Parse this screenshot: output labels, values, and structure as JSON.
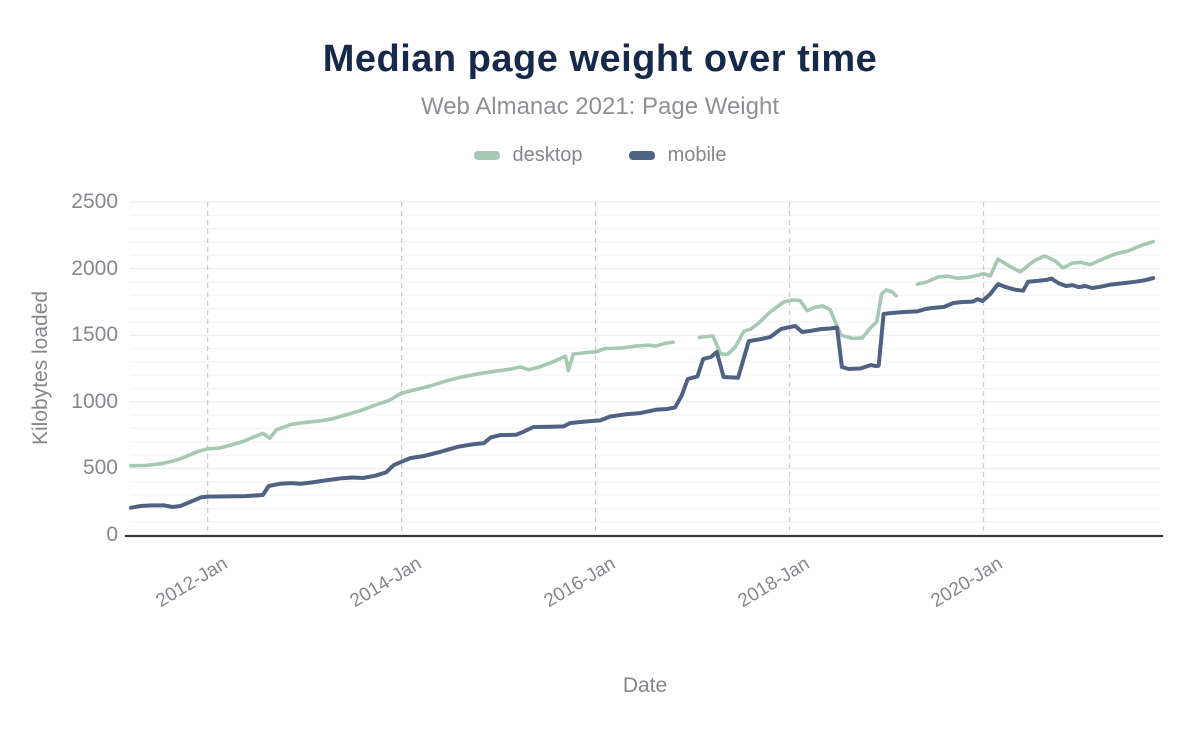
{
  "header": {
    "title": "Median page weight over time",
    "subtitle": "Web Almanac 2021: Page Weight"
  },
  "legend": [
    {
      "label": "desktop",
      "color": "#a6c9b3"
    },
    {
      "label": "mobile",
      "color": "#4f6282"
    }
  ],
  "colors": {
    "title": "#16294a",
    "axis_text": "#85888c",
    "axis_line": "#37393c",
    "grid_minor": "#f2f3f4",
    "grid_major": "#e8e9eb",
    "grid_vertical_dashed": "#cbcccd"
  },
  "chart_data": {
    "type": "line",
    "title": "Median page weight over time",
    "subtitle": "Web Almanac 2021: Page Weight",
    "xlabel": "Date",
    "ylabel": "Kilobytes loaded",
    "x_unit": "decimal_year",
    "xlim": [
      2011.2,
      2021.82
    ],
    "ylim": [
      0,
      2500
    ],
    "y_ticks": [
      0,
      500,
      1000,
      1500,
      2000,
      2500
    ],
    "x_ticks": [
      {
        "t": 2012,
        "label": "2012-Jan"
      },
      {
        "t": 2014,
        "label": "2014-Jan"
      },
      {
        "t": 2016,
        "label": "2016-Jan"
      },
      {
        "t": 2018,
        "label": "2018-Jan"
      },
      {
        "t": 2020,
        "label": "2020-Jan"
      }
    ],
    "grid": {
      "minor_step": 100,
      "major_step": 500,
      "vertical": "dashed"
    },
    "legend_position": "top",
    "series": [
      {
        "name": "desktop",
        "color": "#a6c9b3",
        "width": 3.6,
        "points": [
          [
            2011.21,
            520
          ],
          [
            2011.36,
            522
          ],
          [
            2011.52,
            535
          ],
          [
            2011.64,
            555
          ],
          [
            2011.75,
            580
          ],
          [
            2011.89,
            625
          ],
          [
            2012.0,
            647
          ],
          [
            2012.11,
            652
          ],
          [
            2012.24,
            675
          ],
          [
            2012.37,
            703
          ],
          [
            2012.49,
            740
          ],
          [
            2012.57,
            763
          ],
          [
            2012.64,
            727
          ],
          [
            2012.71,
            790
          ],
          [
            2012.86,
            830
          ],
          [
            2013.01,
            845
          ],
          [
            2013.14,
            855
          ],
          [
            2013.27,
            870
          ],
          [
            2013.42,
            900
          ],
          [
            2013.58,
            935
          ],
          [
            2013.73,
            975
          ],
          [
            2013.87,
            1010
          ],
          [
            2014.0,
            1065
          ],
          [
            2014.14,
            1090
          ],
          [
            2014.3,
            1120
          ],
          [
            2014.45,
            1155
          ],
          [
            2014.61,
            1185
          ],
          [
            2014.79,
            1210
          ],
          [
            2014.97,
            1230
          ],
          [
            2015.12,
            1245
          ],
          [
            2015.23,
            1262
          ],
          [
            2015.31,
            1240
          ],
          [
            2015.41,
            1258
          ],
          [
            2015.56,
            1300
          ],
          [
            2015.69,
            1343
          ],
          [
            2015.72,
            1234
          ],
          [
            2015.77,
            1358
          ],
          [
            2015.9,
            1370
          ],
          [
            2016.0,
            1375
          ],
          [
            2016.1,
            1400
          ],
          [
            2016.26,
            1403
          ],
          [
            2016.41,
            1418
          ],
          [
            2016.55,
            1425
          ],
          [
            2016.62,
            1418
          ],
          [
            2016.72,
            1440
          ],
          [
            2016.8,
            1448
          ],
          null,
          [
            2017.07,
            1483
          ],
          [
            2017.14,
            1490
          ],
          [
            2017.21,
            1494
          ],
          [
            2017.29,
            1360
          ],
          [
            2017.36,
            1355
          ],
          [
            2017.44,
            1410
          ],
          [
            2017.53,
            1530
          ],
          [
            2017.6,
            1545
          ],
          [
            2017.68,
            1590
          ],
          [
            2017.8,
            1674
          ],
          [
            2017.94,
            1749
          ],
          [
            2018.03,
            1764
          ],
          [
            2018.11,
            1760
          ],
          [
            2018.18,
            1685
          ],
          [
            2018.27,
            1710
          ],
          [
            2018.34,
            1720
          ],
          [
            2018.42,
            1690
          ],
          [
            2018.53,
            1500
          ],
          [
            2018.65,
            1475
          ],
          [
            2018.75,
            1480
          ],
          [
            2018.84,
            1560
          ],
          [
            2018.9,
            1600
          ],
          [
            2018.95,
            1810
          ],
          [
            2019.0,
            1840
          ],
          [
            2019.06,
            1824
          ],
          [
            2019.1,
            1795
          ],
          null,
          [
            2019.32,
            1884
          ],
          [
            2019.42,
            1900
          ],
          [
            2019.53,
            1937
          ],
          [
            2019.63,
            1944
          ],
          [
            2019.73,
            1928
          ],
          [
            2019.84,
            1934
          ],
          [
            2019.94,
            1950
          ],
          [
            2020.0,
            1962
          ],
          [
            2020.07,
            1945
          ],
          [
            2020.15,
            2072
          ],
          [
            2020.23,
            2035
          ],
          [
            2020.3,
            2005
          ],
          [
            2020.38,
            1975
          ],
          [
            2020.52,
            2057
          ],
          [
            2020.63,
            2095
          ],
          [
            2020.74,
            2057
          ],
          [
            2020.82,
            2005
          ],
          [
            2020.92,
            2042
          ],
          [
            2021.0,
            2047
          ],
          [
            2021.1,
            2030
          ],
          [
            2021.23,
            2072
          ],
          [
            2021.36,
            2110
          ],
          [
            2021.49,
            2132
          ],
          [
            2021.62,
            2172
          ],
          [
            2021.75,
            2203
          ]
        ]
      },
      {
        "name": "mobile",
        "color": "#4f6282",
        "width": 4,
        "points": [
          [
            2011.21,
            205
          ],
          [
            2011.31,
            218
          ],
          [
            2011.43,
            222
          ],
          [
            2011.55,
            222
          ],
          [
            2011.64,
            210
          ],
          [
            2011.72,
            218
          ],
          [
            2011.82,
            248
          ],
          [
            2011.93,
            282
          ],
          [
            2012.0,
            288
          ],
          [
            2012.19,
            290
          ],
          [
            2012.39,
            292
          ],
          [
            2012.57,
            300
          ],
          [
            2012.63,
            368
          ],
          [
            2012.75,
            385
          ],
          [
            2012.86,
            390
          ],
          [
            2012.96,
            385
          ],
          [
            2013.08,
            395
          ],
          [
            2013.22,
            410
          ],
          [
            2013.37,
            425
          ],
          [
            2013.49,
            432
          ],
          [
            2013.6,
            428
          ],
          [
            2013.73,
            445
          ],
          [
            2013.84,
            470
          ],
          [
            2013.92,
            525
          ],
          [
            2014.0,
            550
          ],
          [
            2014.09,
            577
          ],
          [
            2014.23,
            593
          ],
          [
            2014.4,
            625
          ],
          [
            2014.58,
            662
          ],
          [
            2014.73,
            680
          ],
          [
            2014.85,
            690
          ],
          [
            2014.92,
            733
          ],
          [
            2015.02,
            750
          ],
          [
            2015.18,
            752
          ],
          [
            2015.26,
            776
          ],
          [
            2015.36,
            811
          ],
          [
            2015.54,
            812
          ],
          [
            2015.67,
            815
          ],
          [
            2015.74,
            841
          ],
          [
            2015.9,
            852
          ],
          [
            2016.05,
            860
          ],
          [
            2016.15,
            890
          ],
          [
            2016.31,
            906
          ],
          [
            2016.46,
            915
          ],
          [
            2016.62,
            940
          ],
          [
            2016.74,
            946
          ],
          [
            2016.82,
            958
          ],
          [
            2016.89,
            1050
          ],
          [
            2016.95,
            1171
          ],
          [
            2017.05,
            1190
          ],
          [
            2017.11,
            1321
          ],
          [
            2017.19,
            1336
          ],
          [
            2017.25,
            1374
          ],
          [
            2017.32,
            1186
          ],
          [
            2017.47,
            1180
          ],
          [
            2017.58,
            1456
          ],
          [
            2017.7,
            1470
          ],
          [
            2017.8,
            1486
          ],
          [
            2017.91,
            1546
          ],
          [
            2018.0,
            1561
          ],
          [
            2018.06,
            1569
          ],
          [
            2018.13,
            1524
          ],
          [
            2018.22,
            1532
          ],
          [
            2018.32,
            1546
          ],
          [
            2018.42,
            1550
          ],
          [
            2018.49,
            1557
          ],
          [
            2018.54,
            1261
          ],
          [
            2018.61,
            1246
          ],
          [
            2018.73,
            1250
          ],
          [
            2018.84,
            1276
          ],
          [
            2018.89,
            1268
          ],
          [
            2018.92,
            1272
          ],
          [
            2018.97,
            1659
          ],
          [
            2019.04,
            1666
          ],
          [
            2019.18,
            1674
          ],
          [
            2019.32,
            1679
          ],
          [
            2019.4,
            1697
          ],
          [
            2019.47,
            1704
          ],
          [
            2019.59,
            1712
          ],
          [
            2019.69,
            1742
          ],
          [
            2019.78,
            1749
          ],
          [
            2019.89,
            1752
          ],
          [
            2019.94,
            1770
          ],
          [
            2019.99,
            1757
          ],
          [
            2020.07,
            1809
          ],
          [
            2020.15,
            1884
          ],
          [
            2020.23,
            1861
          ],
          [
            2020.33,
            1841
          ],
          [
            2020.41,
            1834
          ],
          [
            2020.46,
            1902
          ],
          [
            2020.56,
            1908
          ],
          [
            2020.65,
            1915
          ],
          [
            2020.7,
            1926
          ],
          [
            2020.77,
            1892
          ],
          [
            2020.85,
            1869
          ],
          [
            2020.92,
            1876
          ],
          [
            2020.98,
            1861
          ],
          [
            2021.05,
            1869
          ],
          [
            2021.12,
            1854
          ],
          [
            2021.21,
            1864
          ],
          [
            2021.31,
            1880
          ],
          [
            2021.46,
            1892
          ],
          [
            2021.57,
            1902
          ],
          [
            2021.67,
            1914
          ],
          [
            2021.75,
            1929
          ]
        ]
      }
    ]
  }
}
